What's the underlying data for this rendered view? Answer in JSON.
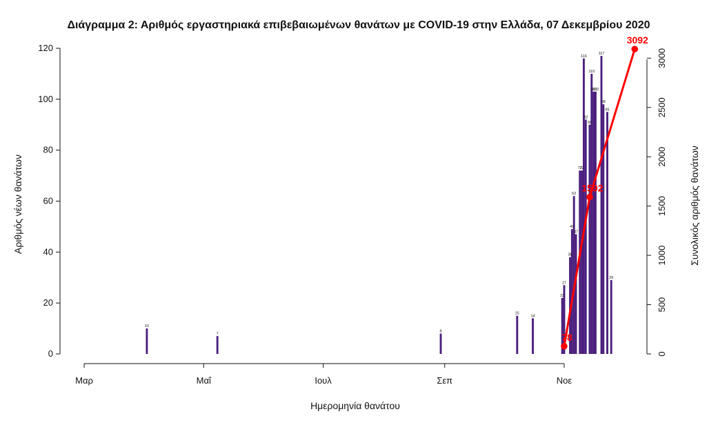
{
  "chart_data": {
    "type": "bar",
    "title": "Διάγραμμα 2: Αριθμός εργαστηριακά επιβεβαιωμένων θανάτων με COVID-19 στην Ελλάδα, 07 Δεκεμβρίου 2020",
    "xlabel": "Ημερομηνία θανάτου",
    "ylabel": "Αριθμός νέων θανάτων",
    "ylabel_right": "Συνολικός αριθμός θανάτων",
    "xlim": [
      "2020-02-26",
      "2020-12-07"
    ],
    "ylim": [
      0,
      120
    ],
    "ylim_right": [
      0,
      3100
    ],
    "yticks": [
      0,
      20,
      40,
      60,
      80,
      100,
      120
    ],
    "yticks_right": [
      0,
      500,
      1000,
      1500,
      2000,
      2500,
      3000
    ],
    "xticks": [
      {
        "date": "2020-03-01",
        "label": "Μαρ"
      },
      {
        "date": "2020-05-01",
        "label": "Μαΐ"
      },
      {
        "date": "2020-07-01",
        "label": "Ιουλ"
      },
      {
        "date": "2020-09-01",
        "label": "Σεπ"
      },
      {
        "date": "2020-11-01",
        "label": "Νοε"
      }
    ],
    "bar_color": "#4b1f7e",
    "line_color": "#ff0000",
    "bar_labels": [
      {
        "date": "2020-04-02",
        "value": 10
      },
      {
        "date": "2020-05-08",
        "value": 7
      },
      {
        "date": "2020-08-30",
        "value": 8
      },
      {
        "date": "2020-10-08",
        "value": 15
      },
      {
        "date": "2020-10-16",
        "value": 14
      },
      {
        "date": "2020-10-31",
        "value": 22
      },
      {
        "date": "2020-11-01",
        "value": 27
      },
      {
        "date": "2020-11-04",
        "value": 38
      },
      {
        "date": "2020-11-05",
        "value": 49
      },
      {
        "date": "2020-11-06",
        "value": 62
      },
      {
        "date": "2020-11-07",
        "value": 47
      },
      {
        "date": "2020-11-09",
        "value": 72
      },
      {
        "date": "2020-11-10",
        "value": 72
      },
      {
        "date": "2020-11-11",
        "value": 116
      },
      {
        "date": "2020-11-12",
        "value": 92
      },
      {
        "date": "2020-11-14",
        "value": 90
      },
      {
        "date": "2020-11-15",
        "value": 110
      },
      {
        "date": "2020-11-16",
        "value": 103
      },
      {
        "date": "2020-11-17",
        "value": 103
      },
      {
        "date": "2020-11-20",
        "value": 117
      },
      {
        "date": "2020-11-21",
        "value": 98
      },
      {
        "date": "2020-11-23",
        "value": 95
      },
      {
        "date": "2020-11-25",
        "value": 29
      }
    ],
    "cumulative_labels": [
      {
        "date": "2020-11-01",
        "value": 78
      },
      {
        "date": "2020-11-14",
        "value": 1592
      },
      {
        "date": "2020-12-07",
        "value": 3092
      }
    ]
  }
}
